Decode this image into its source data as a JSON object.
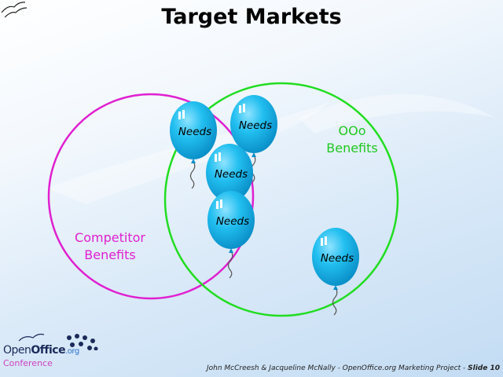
{
  "title": "Target Markets",
  "labels": {
    "competitor_line1": "Competitor",
    "competitor_line2": "Benefits",
    "ooo_line1": "OOo",
    "ooo_line2": "Benefits"
  },
  "balloons": {
    "text": "Needs",
    "count": 5
  },
  "logo": {
    "open": "Open",
    "office": "Office",
    "org": ".org",
    "conference": "Conference"
  },
  "footer": {
    "credit": "John McCreesh & Jacqueline McNally - OpenOffice.org Marketing Project - ",
    "slide": "Slide 10"
  },
  "colors": {
    "competitor_circle": "#e020d0",
    "ooo_circle": "#22dd22",
    "balloon": "#14b4ea"
  }
}
